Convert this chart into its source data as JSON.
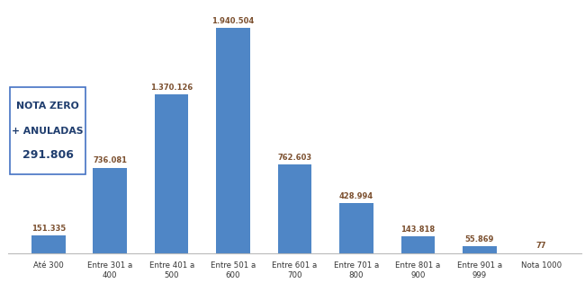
{
  "categories": [
    "Até 300",
    "Entre 301 a\n400",
    "Entre 401 a\n500",
    "Entre 501 a\n600",
    "Entre 601 a\n700",
    "Entre 701 a\n800",
    "Entre 801 a\n900",
    "Entre 901 a\n999",
    "Nota 1000"
  ],
  "values": [
    151335,
    736081,
    1370126,
    1940504,
    762603,
    428994,
    143818,
    55869,
    77
  ],
  "labels": [
    "151.335",
    "736.081",
    "1.370.126",
    "1.940.504",
    "762.603",
    "428.994",
    "143.818",
    "55.869",
    "77"
  ],
  "bar_color": "#4f86c6",
  "label_color": "#7b4f2e",
  "background_color": "#ffffff",
  "box_text_line1": "NOTA ZERO",
  "box_text_line2": "+ ANULADAS",
  "box_text_line3": "291.806",
  "box_edge_color": "#4472c4",
  "box_text_color": "#1f3d6e",
  "ylim_max": 2150000,
  "bar_width": 0.55
}
